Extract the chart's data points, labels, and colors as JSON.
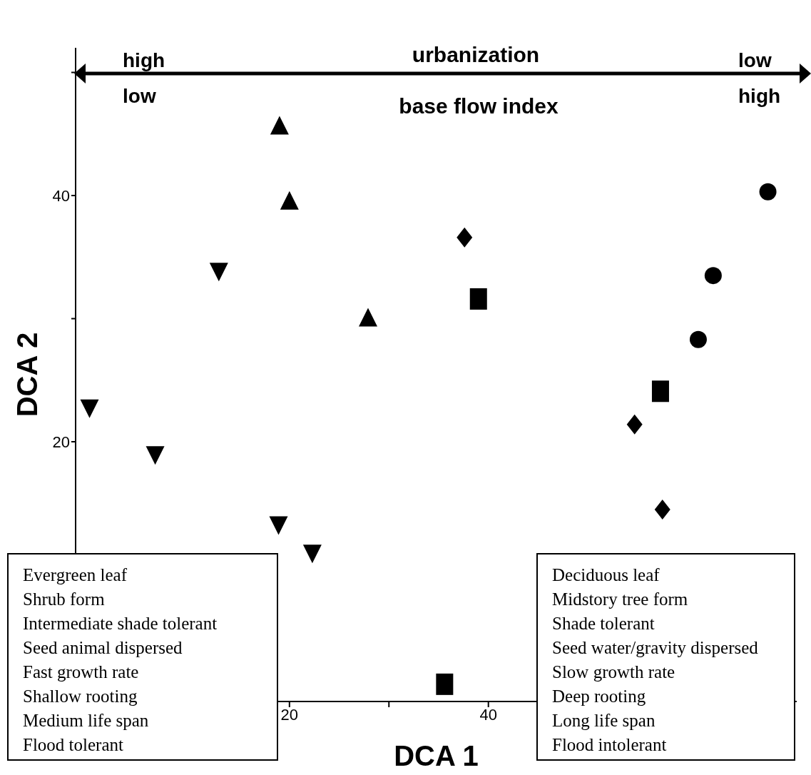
{
  "chart_data": {
    "type": "scatter",
    "xlabel": "DCA 1",
    "ylabel": "DCA 2",
    "xlim": [
      -1.5,
      71
    ],
    "ylim": [
      -1.1,
      52
    ],
    "xticks": [
      20,
      {
        "value": 30,
        "label": null
      },
      40
    ],
    "yticks": [
      20,
      {
        "value": 30,
        "label": null
      },
      40,
      {
        "value": 50,
        "label": null
      }
    ],
    "series": [
      {
        "color": "#000000",
        "marker": "triangle",
        "x": [
          19.0,
          20.0,
          27.9
        ],
        "values": [
          45.6,
          39.5,
          30.0
        ]
      },
      {
        "color": "#000000",
        "marker": "triangle-down",
        "x": [
          -0.1,
          6.5,
          12.9,
          18.9,
          22.3
        ],
        "values": [
          22.8,
          19.0,
          33.9,
          13.3,
          11.0
        ]
      },
      {
        "color": "#000000",
        "marker": "diamond",
        "x": [
          37.6,
          54.7,
          57.5
        ],
        "values": [
          36.6,
          21.4,
          14.5
        ]
      },
      {
        "color": "#000000",
        "marker": "square",
        "x": [
          39.0,
          57.3,
          35.6
        ],
        "values": [
          31.6,
          24.1,
          0.3
        ]
      },
      {
        "color": "#000000",
        "marker": "circle",
        "x": [
          68.1,
          62.6,
          61.1
        ],
        "values": [
          40.3,
          33.5,
          28.3
        ]
      }
    ],
    "annotations": [
      "urbanization",
      "base flow index",
      "high",
      "low",
      "low",
      "high",
      "Evergreen leaf",
      "Shrub form",
      "Intermediate shade tolerant",
      "Seed animal dispersed",
      "Fast growth rate",
      "Shallow rooting",
      "Medium life span",
      "Flood tolerant",
      "Deciduous leaf",
      "Midstory tree form",
      "Shade tolerant",
      "Seed water/gravity dispersed",
      "Slow growth rate",
      "Deep rooting",
      "Long life span",
      "Flood intolerant"
    ]
  }
}
